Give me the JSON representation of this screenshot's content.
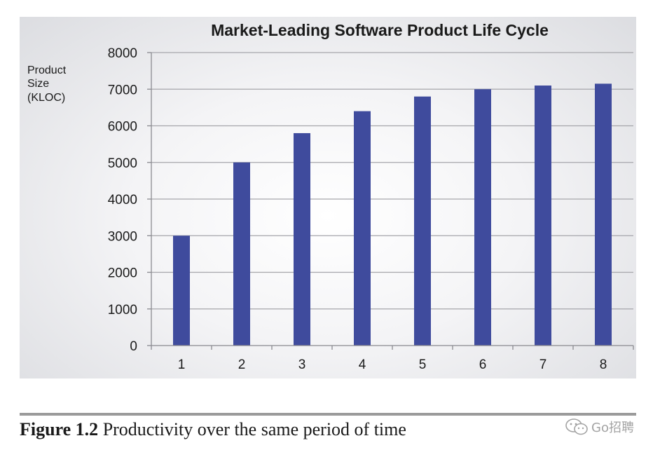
{
  "chart_data": {
    "type": "bar",
    "title": "Market-Leading Software Product Life Cycle",
    "ylabel_lines": [
      "Product",
      "Size",
      "(KLOC)"
    ],
    "xlabel": "",
    "categories": [
      "1",
      "2",
      "3",
      "4",
      "5",
      "6",
      "7",
      "8"
    ],
    "values": [
      3000,
      5000,
      5800,
      6400,
      6800,
      7000,
      7100,
      7150
    ],
    "ylim": [
      0,
      8000
    ],
    "yticks": [
      "0",
      "1000",
      "2000",
      "3000",
      "4000",
      "5000",
      "6000",
      "7000",
      "8000"
    ],
    "grid": true,
    "legend": "none",
    "bar_color": "#3f4b9d"
  },
  "caption": {
    "label": "Figure 1.2",
    "text": " Productivity over the same period of time"
  },
  "watermark": {
    "icon": "wechat-icon",
    "text": "Go招聘"
  }
}
